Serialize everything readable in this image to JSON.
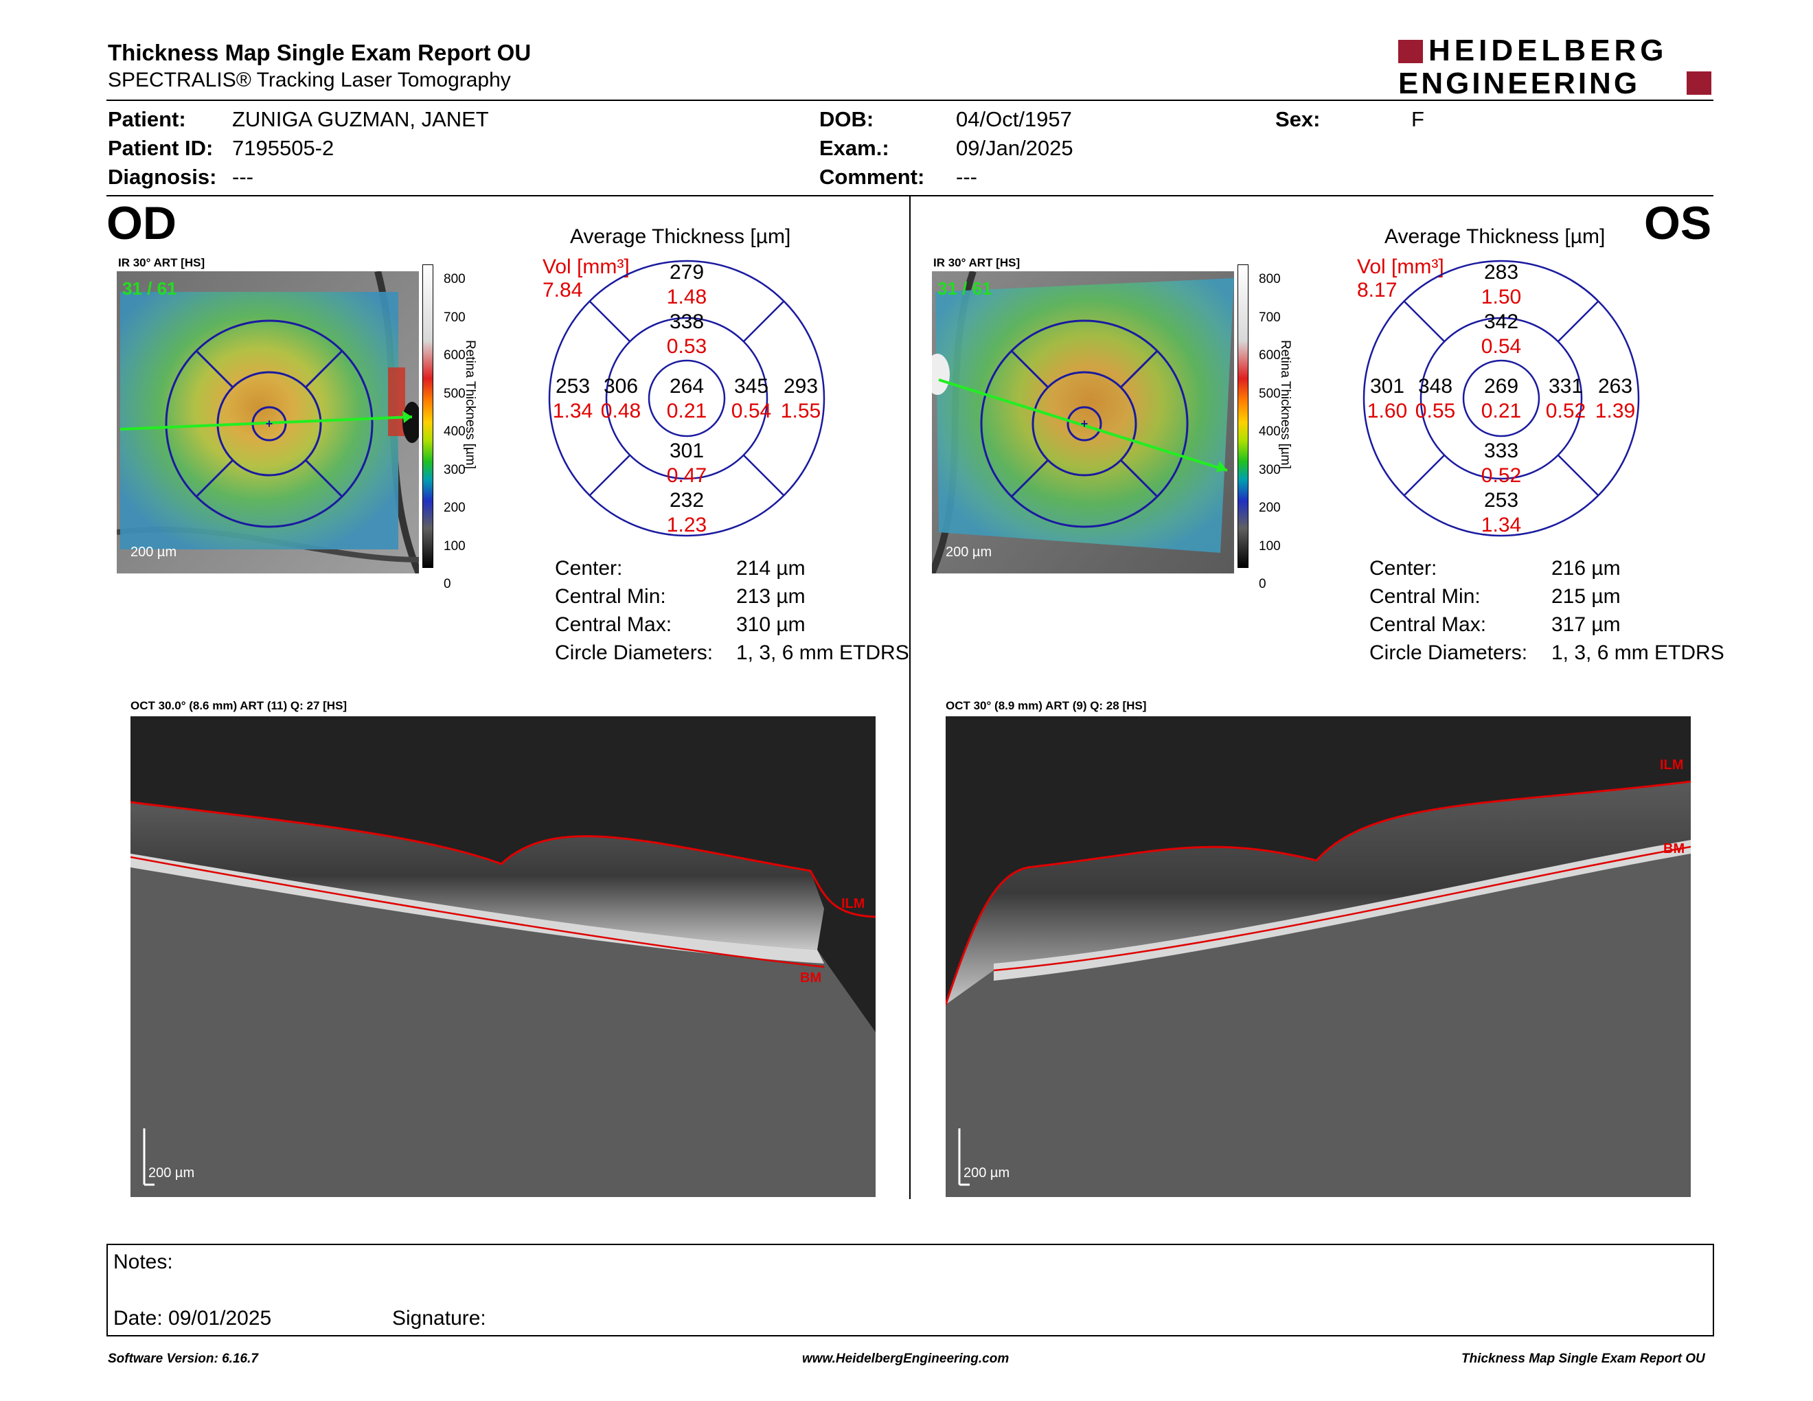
{
  "header": {
    "title": "Thickness Map Single Exam Report OU",
    "subtitle": "SPECTRALIS® Tracking Laser Tomography",
    "logo_line1": "HEIDELBERG",
    "logo_line2": "ENGINEERING"
  },
  "patient": {
    "patient_label": "Patient:",
    "patient_value": "ZUNIGA GUZMAN, JANET",
    "id_label": "Patient ID:",
    "id_value": "7195505-2",
    "diagnosis_label": "Diagnosis:",
    "diagnosis_value": "---",
    "dob_label": "DOB:",
    "dob_value": "04/Oct/1957",
    "exam_label": "Exam.:",
    "exam_value": "09/Jan/2025",
    "comment_label": "Comment:",
    "comment_value": "---",
    "sex_label": "Sex:",
    "sex_value": "F"
  },
  "od": {
    "eye_label": "OD",
    "ir_label": "IR 30° ART [HS]",
    "frame_label": "31 / 61",
    "scale_label": "200 µm",
    "avg_title": "Average Thickness [µm]",
    "vol_label": "Vol [mm³]",
    "vol_value": "7.84",
    "sectors": {
      "center_t": "264",
      "center_v": "0.21",
      "inner_sup_t": "338",
      "inner_sup_v": "0.53",
      "inner_inf_t": "301",
      "inner_inf_v": "0.47",
      "inner_left_t": "306",
      "inner_left_v": "0.48",
      "inner_right_t": "345",
      "inner_right_v": "0.54",
      "outer_sup_t": "279",
      "outer_sup_v": "1.48",
      "outer_inf_t": "232",
      "outer_inf_v": "1.23",
      "outer_left_t": "253",
      "outer_left_v": "1.34",
      "outer_right_t": "293",
      "outer_right_v": "1.55"
    },
    "stats": {
      "center_label": "Center:",
      "center_value": "214 µm",
      "cmin_label": "Central Min:",
      "cmin_value": "213 µm",
      "cmax_label": "Central Max:",
      "cmax_value": "310 µm",
      "diam_label": "Circle Diameters:",
      "diam_value": "1, 3, 6 mm ETDRS"
    },
    "oct_label": "OCT 30.0° (8.6 mm) ART (11) Q: 27 [HS]",
    "oct_scale": "200 µm",
    "ilm": "ILM",
    "bm": "BM"
  },
  "os": {
    "eye_label": "OS",
    "ir_label": "IR 30° ART [HS]",
    "frame_label": "31 / 61",
    "scale_label": "200 µm",
    "avg_title": "Average Thickness [µm]",
    "vol_label": "Vol [mm³]",
    "vol_value": "8.17",
    "sectors": {
      "center_t": "269",
      "center_v": "0.21",
      "inner_sup_t": "342",
      "inner_sup_v": "0.54",
      "inner_inf_t": "333",
      "inner_inf_v": "0.52",
      "inner_left_t": "348",
      "inner_left_v": "0.55",
      "inner_right_t": "331",
      "inner_right_v": "0.52",
      "outer_sup_t": "283",
      "outer_sup_v": "1.50",
      "outer_inf_t": "253",
      "outer_inf_v": "1.34",
      "outer_left_t": "301",
      "outer_left_v": "1.60",
      "outer_right_t": "263",
      "outer_right_v": "1.39"
    },
    "stats": {
      "center_label": "Center:",
      "center_value": "216 µm",
      "cmin_label": "Central Min:",
      "cmin_value": "215 µm",
      "cmax_label": "Central Max:",
      "cmax_value": "317 µm",
      "diam_label": "Circle Diameters:",
      "diam_value": "1, 3, 6 mm ETDRS"
    },
    "oct_label": "OCT 30° (8.9 mm) ART (9) Q: 28 [HS]",
    "oct_scale": "200 µm",
    "ilm": "ILM",
    "bm": "BM"
  },
  "colorbar": {
    "ticks": [
      "800",
      "700",
      "600",
      "500",
      "400",
      "300",
      "200",
      "100",
      "0"
    ],
    "label": "Retina Thickness [µm]"
  },
  "notes": {
    "notes_label": "Notes:",
    "date_label": "Date: 09/01/2025",
    "signature_label": "Signature:"
  },
  "footer": {
    "software": "Software Version: 6.16.7",
    "website": "www.HeidelbergEngineering.com",
    "report": "Thickness Map Single Exam Report OU"
  },
  "colors": {
    "accent_red": "#e00000",
    "logo_red": "#9b1b30",
    "circle_blue": "#1a1aa0"
  }
}
